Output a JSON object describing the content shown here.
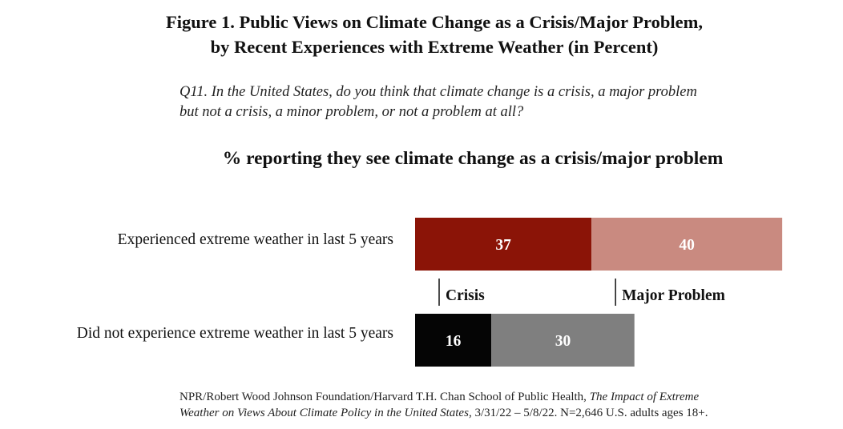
{
  "title_line1": "Figure 1. Public Views on Climate Change as a Crisis/Major Problem,",
  "title_line2": "by Recent Experiences with Extreme Weather (in Percent)",
  "question_line1": "Q11. In the United States, do you think that climate change is a crisis, a major problem",
  "question_line2": "but not a crisis, a minor problem, or not a problem at all?",
  "subtitle": "% reporting they see climate change as a crisis/major problem",
  "source": {
    "line1_plain": "NPR/Robert Wood Johnson Foundation/Harvard T.H. Chan School of Public Health, ",
    "line1_italic": "The Impact of Extreme",
    "line2_italic": "Weather on Views About Climate Policy in the United States",
    "line2_plain": ", 3/31/22 – 5/8/22. N=2,646 U.S. adults ages 18+."
  },
  "chart_data": {
    "type": "bar",
    "orientation": "horizontal",
    "stacked": true,
    "categories": [
      "Experienced extreme weather in last 5 years",
      "Did not experience extreme weather in last 5 years"
    ],
    "series": [
      {
        "name": "Crisis",
        "values": [
          37,
          16
        ],
        "colors": [
          "#8b1407",
          "#050505"
        ]
      },
      {
        "name": "Major Problem",
        "values": [
          40,
          30
        ],
        "colors": [
          "#c98a80",
          "#7f7f7f"
        ]
      }
    ],
    "xlim": [
      0,
      100
    ],
    "grid": false,
    "legend_placement": "between bars"
  }
}
